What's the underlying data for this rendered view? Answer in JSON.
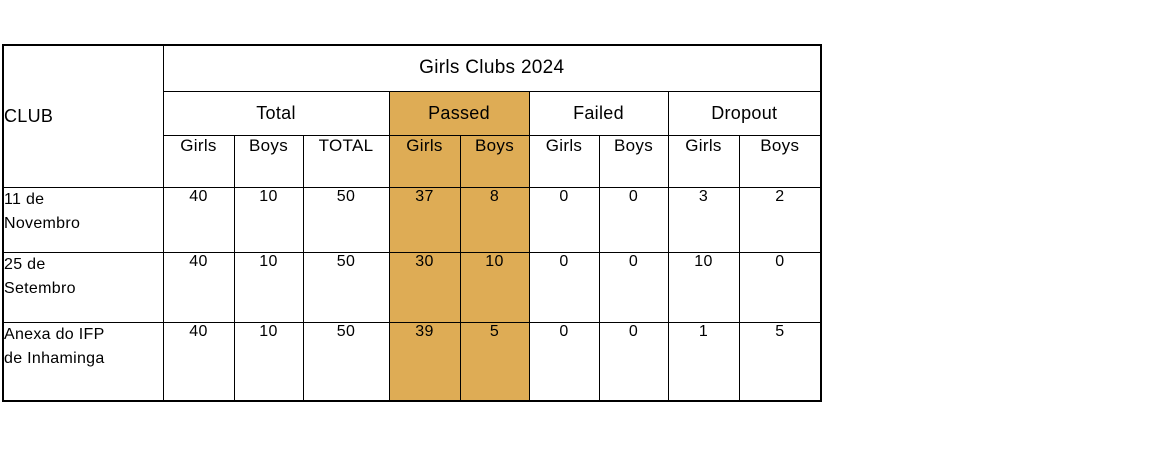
{
  "table": {
    "corner_header": "CLUB",
    "title": "Girls Clubs 2024",
    "groups": [
      {
        "label": "Total"
      },
      {
        "label": "Passed",
        "highlighted": true
      },
      {
        "label": "Failed"
      },
      {
        "label": "Dropout"
      }
    ],
    "subheaders": [
      "Girls",
      "Boys",
      "TOTAL",
      "Girls",
      "Boys",
      "Girls",
      "Boys",
      "Girls",
      "Boys"
    ],
    "rows": [
      {
        "club": "11 de Novembro",
        "values": [
          40,
          10,
          50,
          37,
          8,
          0,
          0,
          3,
          2
        ]
      },
      {
        "club": "25 de Setembro",
        "values": [
          40,
          10,
          50,
          30,
          10,
          0,
          0,
          10,
          0
        ]
      },
      {
        "club": "Anexa do IFP de Inhaminga",
        "values": [
          40,
          10,
          50,
          39,
          5,
          0,
          0,
          1,
          5
        ]
      }
    ]
  },
  "colors": {
    "highlight": "#DEAC55",
    "border": "#000000",
    "text": "#000000",
    "background": "#FFFFFF"
  }
}
